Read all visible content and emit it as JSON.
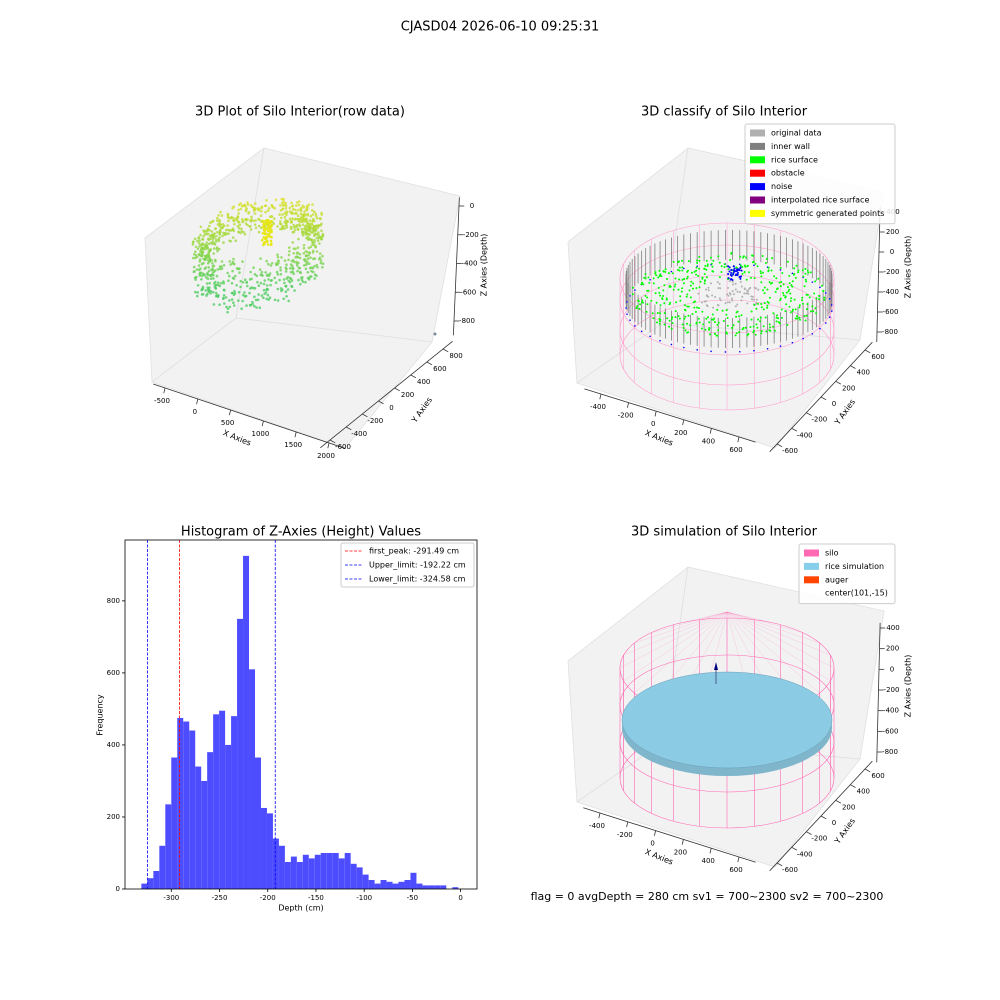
{
  "title": "CJASD04 2026-06-10 09:25:31",
  "footer": "flag = 0     avgDepth = 280 cm  sv1 = 700~2300  sv2 = 700~2300",
  "chart_data": [
    {
      "type": "scatter3d",
      "title": "3D Plot of Silo Interior(row data)",
      "xlabel": "X Axies",
      "ylabel": "Y Axies",
      "zlabel": "Z Axies (Depth)",
      "xlim": [
        -680,
        2250
      ],
      "xticks": [
        -500,
        0,
        500,
        1000,
        1500,
        2000
      ],
      "ylim": [
        -720,
        920
      ],
      "yticks": [
        -600,
        -400,
        -200,
        0,
        200,
        400,
        600,
        800
      ],
      "zlim": [
        -900,
        60
      ],
      "zticks": [
        0,
        -200,
        -400,
        -600,
        -800
      ]
    },
    {
      "type": "classify3d",
      "title": "3D classify of Silo Interior",
      "xlabel": "X Axies",
      "ylabel": "Y Axies",
      "zlabel": "Z Axies (Depth)",
      "xlim": [
        -520,
        720
      ],
      "xticks": [
        -400,
        -200,
        0,
        200,
        400,
        600
      ],
      "ylim": [
        -700,
        700
      ],
      "yticks": [
        -600,
        -400,
        -200,
        0,
        200,
        400,
        600
      ],
      "zlim": [
        -900,
        450
      ],
      "zticks": [
        -800,
        -600,
        -400,
        -200,
        0,
        200,
        400
      ],
      "legend": [
        {
          "name": "original data",
          "color": "#b0b0b0"
        },
        {
          "name": "inner wall",
          "color": "#808080"
        },
        {
          "name": "rice surface",
          "color": "#00ff00"
        },
        {
          "name": "obstacle",
          "color": "#ff0000"
        },
        {
          "name": "noise",
          "color": "#0000ff"
        },
        {
          "name": "interpolated rice surface",
          "color": "#800080"
        },
        {
          "name": "symmetric generated points",
          "color": "#ffff00"
        }
      ]
    },
    {
      "type": "histogram",
      "title": "Histogram of Z-Axies (Height) Values",
      "xlabel": "Depth (cm)",
      "ylabel": "Frequency",
      "color": "#4d4dff",
      "xlim": [
        -348,
        17
      ],
      "xticks": [
        -300,
        -250,
        -200,
        -150,
        -100,
        -50,
        0
      ],
      "ylim": [
        0,
        969
      ],
      "yticks": [
        0,
        200,
        400,
        600,
        800
      ],
      "bins": [
        -331,
        -324.8,
        -318.6,
        -312.4,
        -306.2,
        -300,
        -293.8,
        -287.6,
        -281.4,
        -275.2,
        -269,
        -262.8,
        -256.6,
        -250.4,
        -244.2,
        -238,
        -231.8,
        -225.6,
        -219.4,
        -213.2,
        -207,
        -200.8,
        -194.6,
        -188.4,
        -182.2,
        -176,
        -169.8,
        -163.6,
        -157.4,
        -151.2,
        -145,
        -138.8,
        -132.6,
        -126.4,
        -120.2,
        -114,
        -107.8,
        -101.6,
        -95.4,
        -89.2,
        -83,
        -76.8,
        -70.6,
        -64.4,
        -58.2,
        -52,
        -45.8,
        -39.6,
        -33.4,
        -27.2,
        -21,
        -14.8,
        -8.6,
        -2.4
      ],
      "counts": [
        15,
        30,
        50,
        120,
        235,
        365,
        475,
        465,
        440,
        340,
        300,
        380,
        485,
        495,
        400,
        480,
        750,
        925,
        610,
        365,
        225,
        210,
        140,
        120,
        75,
        90,
        75,
        95,
        85,
        95,
        100,
        100,
        100,
        85,
        100,
        70,
        60,
        40,
        25,
        15,
        25,
        20,
        15,
        20,
        25,
        45,
        15,
        10,
        10,
        10,
        10,
        0,
        5
      ],
      "vlines": [
        {
          "name": "first_peak: -291.49 cm",
          "value": -291.49,
          "color": "#ff0000"
        },
        {
          "name": "Upper_limit: -192.22 cm",
          "value": -192.22,
          "color": "#0000ff"
        },
        {
          "name": "Lower_limit: -324.58 cm",
          "value": -324.58,
          "color": "#0000ff"
        }
      ]
    },
    {
      "type": "simulation3d",
      "title": "3D simulation of Silo Interior",
      "xlabel": "X Axies",
      "ylabel": "Y Axies",
      "zlabel": "Z Axies (Depth)",
      "xlim": [
        -520,
        720
      ],
      "xticks": [
        -400,
        -200,
        0,
        200,
        400,
        600
      ],
      "ylim": [
        -700,
        700
      ],
      "yticks": [
        -600,
        -400,
        -200,
        0,
        200,
        400,
        600
      ],
      "zlim": [
        -900,
        450
      ],
      "zticks": [
        -800,
        -600,
        -400,
        -200,
        0,
        200,
        400
      ],
      "legend": [
        {
          "name": "silo",
          "color": "#ff69b4"
        },
        {
          "name": "rice simulation",
          "color": "#87ceeb"
        },
        {
          "name": "auger",
          "color": "#ff4500"
        },
        {
          "name": "center(101,-15)",
          "color": null
        }
      ]
    }
  ]
}
